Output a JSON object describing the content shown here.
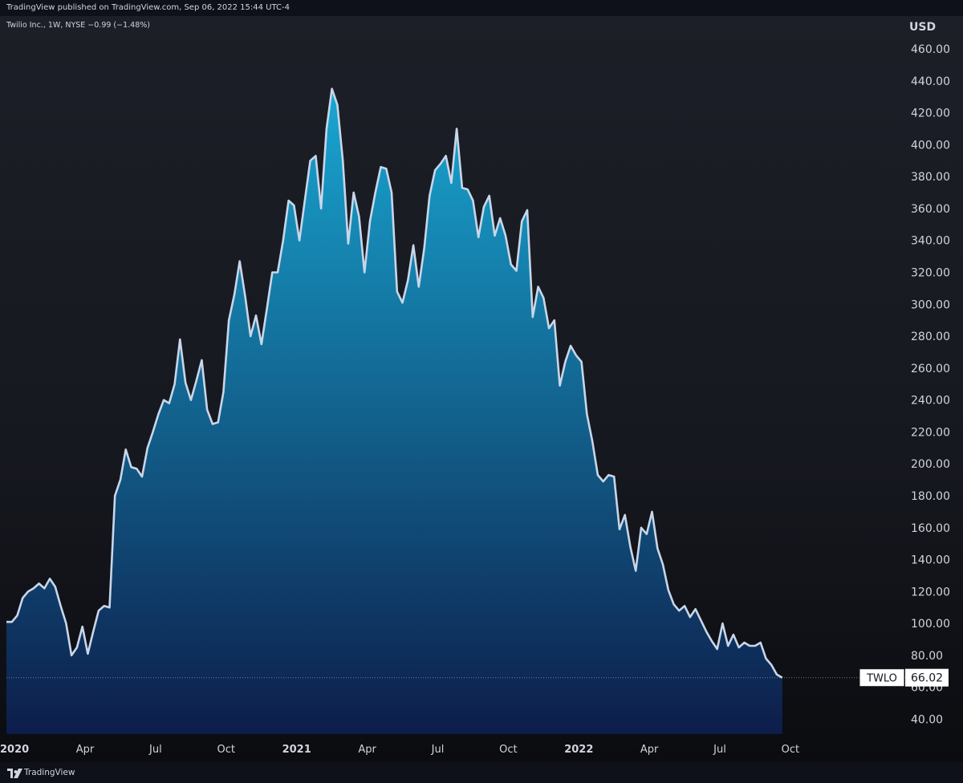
{
  "header": {
    "publish_text": "TradingView published on TradingView.com, Sep 06, 2022 15:44 UTC-4",
    "symbol_text": "Twilio Inc., 1W, NYSE  −0.99 (−1.48%)"
  },
  "footer": {
    "brand": "TradingView"
  },
  "colors": {
    "background": "#131722",
    "line": "#c9d6e8",
    "fill_top": "#18a7d2",
    "fill_bottom": "#0d1d4a",
    "text": "#d1d4dc"
  },
  "chart_data": {
    "type": "area",
    "currency_label": "USD",
    "ylim": [
      30,
      470
    ],
    "y_ticks": [
      40,
      60,
      80,
      100,
      120,
      140,
      160,
      180,
      200,
      220,
      240,
      260,
      280,
      300,
      320,
      340,
      360,
      380,
      400,
      420,
      440,
      460
    ],
    "y_tick_labels": [
      "40.00",
      "60.00",
      "80.00",
      "100.00",
      "120.00",
      "140.00",
      "160.00",
      "180.00",
      "200.00",
      "220.00",
      "240.00",
      "260.00",
      "280.00",
      "300.00",
      "320.00",
      "340.00",
      "360.00",
      "380.00",
      "400.00",
      "420.00",
      "440.00",
      "460.00"
    ],
    "x_ticks": [
      {
        "label": "2020",
        "index": 1.5,
        "bold": true
      },
      {
        "label": "Apr",
        "index": 14.5,
        "bold": false
      },
      {
        "label": "Jul",
        "index": 27.5,
        "bold": false
      },
      {
        "label": "Oct",
        "index": 40.5,
        "bold": false
      },
      {
        "label": "2021",
        "index": 53.5,
        "bold": true
      },
      {
        "label": "Apr",
        "index": 66.5,
        "bold": false
      },
      {
        "label": "Jul",
        "index": 79.5,
        "bold": false
      },
      {
        "label": "Oct",
        "index": 92.5,
        "bold": false
      },
      {
        "label": "2022",
        "index": 105.5,
        "bold": true
      },
      {
        "label": "Apr",
        "index": 118.5,
        "bold": false
      },
      {
        "label": "Jul",
        "index": 131.5,
        "bold": false
      },
      {
        "label": "Oct",
        "index": 144.5,
        "bold": false
      }
    ],
    "x_index_range": [
      0,
      163
    ],
    "series": [
      {
        "values": [
          101,
          101,
          105,
          116,
          120,
          122,
          125,
          122,
          128,
          123,
          111,
          100,
          80,
          85,
          98,
          81,
          95,
          108,
          111,
          110,
          180,
          190,
          209,
          198,
          197,
          192,
          210,
          220,
          231,
          240,
          238,
          250,
          278,
          251,
          240,
          252,
          265,
          234,
          225,
          226,
          245,
          290,
          306,
          327,
          305,
          280,
          293,
          275,
          297,
          320,
          320,
          340,
          365,
          362,
          340,
          365,
          390,
          393,
          360,
          410,
          435,
          425,
          390,
          338,
          370,
          355,
          320,
          352,
          370,
          386,
          385,
          370,
          308,
          301,
          315,
          337,
          311,
          335,
          368,
          384,
          388,
          393,
          376,
          410,
          373,
          372,
          365,
          342,
          361,
          368,
          343,
          354,
          343,
          325,
          321,
          352,
          359,
          292,
          311,
          304,
          285,
          290,
          249,
          264,
          274,
          268,
          264,
          231,
          214,
          193,
          189,
          193,
          192,
          159,
          168,
          148,
          133,
          160,
          156,
          170,
          147,
          137,
          121,
          112,
          108,
          111,
          104,
          109,
          102,
          95,
          89,
          84,
          100,
          86,
          93,
          85,
          88,
          86,
          86,
          88,
          78,
          74,
          68,
          66.02
        ]
      }
    ],
    "last_price": {
      "symbol": "TWLO",
      "value": "66.02"
    }
  }
}
